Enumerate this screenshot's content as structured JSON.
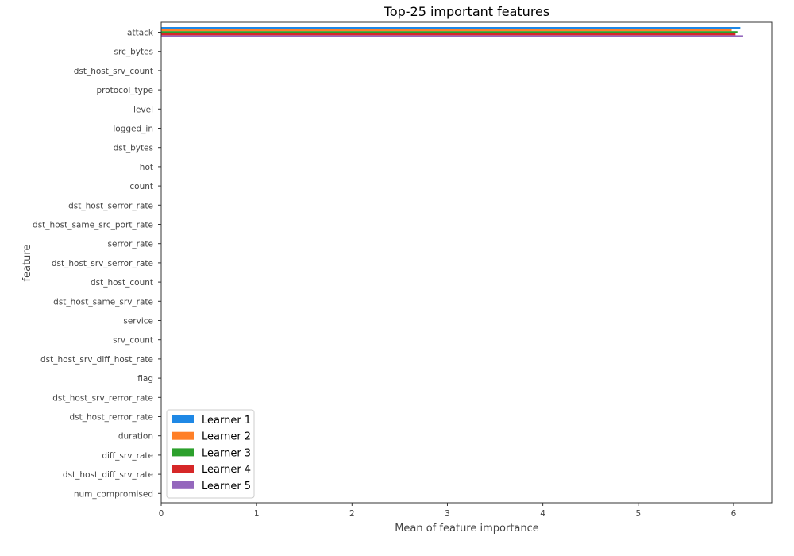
{
  "chart_data": {
    "type": "bar",
    "orientation": "horizontal",
    "title": "Top-25 important features",
    "xlabel": "Mean of feature importance",
    "ylabel": "feature",
    "xlim": [
      0,
      6.4
    ],
    "xticks": [
      0,
      1,
      2,
      3,
      4,
      5,
      6
    ],
    "grid": false,
    "legend_position": "lower-left",
    "categories": [
      "attack",
      "src_bytes",
      "dst_host_srv_count",
      "protocol_type",
      "level",
      "logged_in",
      "dst_bytes",
      "hot",
      "count",
      "dst_host_serror_rate",
      "dst_host_same_src_port_rate",
      "serror_rate",
      "dst_host_srv_serror_rate",
      "dst_host_count",
      "dst_host_same_srv_rate",
      "service",
      "srv_count",
      "dst_host_srv_diff_host_rate",
      "flag",
      "dst_host_srv_rerror_rate",
      "dst_host_rerror_rate",
      "duration",
      "diff_srv_rate",
      "dst_host_diff_srv_rate",
      "num_compromised"
    ],
    "series": [
      {
        "name": "Learner 1",
        "color": "#1f88e5",
        "values": [
          6.07,
          0,
          0,
          0,
          0,
          0,
          0,
          0,
          0,
          0,
          0,
          0,
          0,
          0,
          0,
          0,
          0,
          0,
          0,
          0,
          0,
          0,
          0,
          0,
          0
        ]
      },
      {
        "name": "Learner 2",
        "color": "#ff7f27",
        "values": [
          5.98,
          0,
          0,
          0,
          0,
          0,
          0,
          0,
          0,
          0,
          0,
          0,
          0,
          0,
          0,
          0,
          0,
          0,
          0,
          0,
          0,
          0,
          0,
          0,
          0
        ]
      },
      {
        "name": "Learner 3",
        "color": "#2ca02c",
        "values": [
          6.04,
          0,
          0,
          0,
          0,
          0,
          0,
          0,
          0,
          0,
          0,
          0,
          0,
          0,
          0,
          0,
          0,
          0,
          0,
          0,
          0,
          0,
          0,
          0,
          0
        ]
      },
      {
        "name": "Learner 4",
        "color": "#d62728",
        "values": [
          6.02,
          0,
          0,
          0,
          0,
          0,
          0,
          0,
          0,
          0,
          0,
          0,
          0,
          0,
          0,
          0,
          0,
          0,
          0,
          0,
          0,
          0,
          0,
          0,
          0
        ]
      },
      {
        "name": "Learner 5",
        "color": "#9467bd",
        "values": [
          6.1,
          0,
          0,
          0,
          0,
          0,
          0,
          0,
          0,
          0,
          0,
          0,
          0,
          0,
          0,
          0,
          0,
          0,
          0,
          0,
          0,
          0,
          0,
          0,
          0
        ]
      }
    ]
  }
}
